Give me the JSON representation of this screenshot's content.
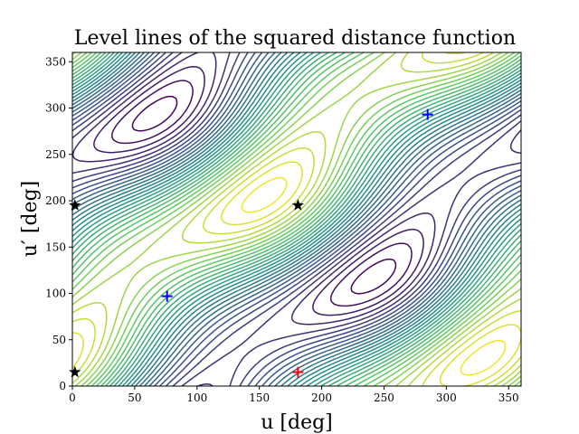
{
  "chart_data": {
    "type": "contour",
    "title": "Level lines of the squared distance function",
    "xlabel": "u [deg]",
    "ylabel": "u′ [deg]",
    "xlim": [
      0,
      360
    ],
    "ylim": [
      0,
      360
    ],
    "xticks": [
      0,
      50,
      100,
      150,
      200,
      250,
      300,
      350
    ],
    "yticks": [
      0,
      50,
      100,
      150,
      200,
      250,
      300,
      350
    ],
    "colormap": "viridis",
    "num_levels": 30,
    "markers": [
      {
        "name": "star-1",
        "shape": "star",
        "color": "#000000",
        "x": 2,
        "y": 195
      },
      {
        "name": "star-2",
        "shape": "star",
        "color": "#000000",
        "x": 181,
        "y": 195
      },
      {
        "name": "star-3",
        "shape": "star",
        "color": "#000000",
        "x": 2,
        "y": 15
      },
      {
        "name": "plus-blue-1",
        "shape": "plus",
        "color": "#0000ff",
        "x": 76,
        "y": 97
      },
      {
        "name": "plus-blue-2",
        "shape": "plus",
        "color": "#0000ff",
        "x": 285,
        "y": 293
      },
      {
        "name": "plus-red",
        "shape": "plus",
        "color": "#ff0000",
        "x": 181,
        "y": 15
      }
    ]
  }
}
